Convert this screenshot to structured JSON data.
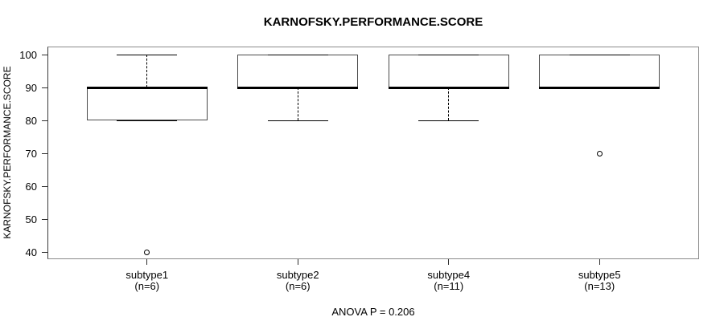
{
  "figure": {
    "title": "KARNOFSKY.PERFORMANCE.SCORE",
    "y_axis_label": "KARNOFSKY.PERFORMANCE.SCORE",
    "annotation": "ANOVA P = 0.206"
  },
  "chart_data": {
    "type": "boxplot",
    "title": "KARNOFSKY.PERFORMANCE.SCORE",
    "xlabel": "",
    "ylabel": "KARNOFSKY.PERFORMANCE.SCORE",
    "annotation": "ANOVA P = 0.206",
    "ylim": [
      40,
      100
    ],
    "yticks": [
      40,
      50,
      60,
      70,
      80,
      90,
      100
    ],
    "grid": false,
    "groups": [
      {
        "label": "subtype1",
        "sublabel": "(n=6)",
        "n": 6,
        "q1": 80,
        "median": 90,
        "q3": 90,
        "whisker_low": 80,
        "whisker_high": 100,
        "outliers": [
          40
        ]
      },
      {
        "label": "subtype2",
        "sublabel": "(n=6)",
        "n": 6,
        "q1": 90,
        "median": 90,
        "q3": 100,
        "whisker_low": 80,
        "whisker_high": 100,
        "outliers": []
      },
      {
        "label": "subtype4",
        "sublabel": "(n=11)",
        "n": 11,
        "q1": 90,
        "median": 90,
        "q3": 100,
        "whisker_low": 80,
        "whisker_high": 100,
        "outliers": []
      },
      {
        "label": "subtype5",
        "sublabel": "(n=13)",
        "n": 13,
        "q1": 90,
        "median": 90,
        "q3": 100,
        "whisker_low": 90,
        "whisker_high": 100,
        "outliers": [
          70
        ]
      }
    ]
  },
  "colors": {
    "line": "#000000",
    "background": "#ffffff"
  }
}
